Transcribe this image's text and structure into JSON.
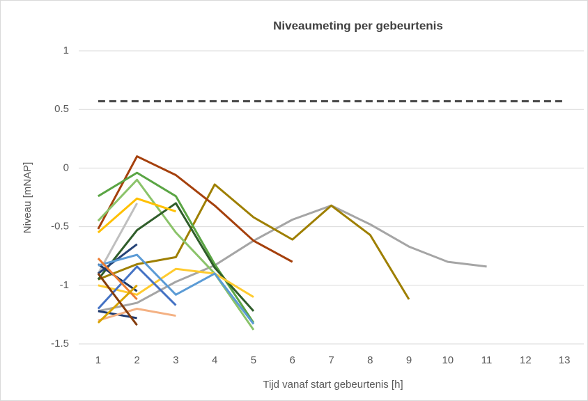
{
  "chart_data": {
    "type": "line",
    "title": "Niveaumeting per gebeurtenis",
    "x_label": "Tijd vanaf start gebeurtenis [h]",
    "y_label": "Niveau [mNAP]",
    "x": [
      1,
      2,
      3,
      4,
      5,
      6,
      7,
      8,
      9,
      10,
      11,
      12,
      13
    ],
    "xlim": [
      0.5,
      13.5
    ],
    "ylim": [
      -1.5,
      1
    ],
    "yticks": [
      1,
      0.5,
      0,
      -0.5,
      -1,
      -1.5
    ],
    "grid": true,
    "series": [
      {
        "color": "#404040",
        "style": "dashed",
        "values": [
          0.57,
          0.57,
          0.57,
          0.57,
          0.57,
          0.57,
          0.57,
          0.57,
          0.57,
          0.57,
          0.57,
          0.57,
          0.57
        ]
      },
      {
        "color": "#a5a5a5",
        "values": [
          -1.22,
          -1.15,
          -0.97,
          -0.83,
          -0.62,
          -0.44,
          -0.32,
          -0.48,
          -0.67,
          -0.8,
          -0.84,
          null,
          null
        ]
      },
      {
        "color": "#9e7f00",
        "values": [
          -0.95,
          -0.82,
          -0.76,
          -0.14,
          -0.42,
          -0.61,
          -0.32,
          -0.57,
          -1.12,
          null,
          null,
          null,
          null
        ]
      },
      {
        "color": "#a5400c",
        "values": [
          -0.52,
          0.1,
          -0.06,
          -0.32,
          -0.62,
          -0.8,
          null,
          null,
          null,
          null,
          null,
          null,
          null
        ]
      },
      {
        "color": "#8bc36a",
        "values": [
          -0.45,
          -0.1,
          -0.55,
          -0.9,
          -1.38,
          null,
          null,
          null,
          null,
          null,
          null,
          null,
          null
        ]
      },
      {
        "color": "#5aa544",
        "values": [
          -0.24,
          -0.04,
          -0.24,
          -0.82,
          -1.32,
          null,
          null,
          null,
          null,
          null,
          null,
          null,
          null
        ]
      },
      {
        "color": "#2f5d2a",
        "values": [
          -0.95,
          -0.53,
          -0.3,
          -0.85,
          -1.22,
          null,
          null,
          null,
          null,
          null,
          null,
          null,
          null
        ]
      },
      {
        "color": "#ffc000",
        "values": [
          -0.55,
          -0.26,
          -0.37,
          null,
          null,
          null,
          null,
          null,
          null,
          null,
          null,
          null,
          null
        ]
      },
      {
        "color": "#ffcb2f",
        "values": [
          -1.0,
          -1.08,
          -0.86,
          -0.9,
          -1.1,
          null,
          null,
          null,
          null,
          null,
          null,
          null,
          null
        ]
      },
      {
        "color": "#bfbfbf",
        "values": [
          -0.9,
          -0.3,
          null,
          null,
          null,
          null,
          null,
          null,
          null,
          null,
          null,
          null,
          null
        ]
      },
      {
        "color": "#264478",
        "values": [
          -0.9,
          -0.65,
          null,
          null,
          null,
          null,
          null,
          null,
          null,
          null,
          null,
          null,
          null
        ]
      },
      {
        "color": "#203864",
        "values": [
          -0.82,
          -1.05,
          null,
          null,
          null,
          null,
          null,
          null,
          null,
          null,
          null,
          null,
          null
        ]
      },
      {
        "color": "#1f3a70",
        "values": [
          -1.22,
          -1.28,
          null,
          null,
          null,
          null,
          null,
          null,
          null,
          null,
          null,
          null,
          null
        ]
      },
      {
        "color": "#5b9bd5",
        "values": [
          -0.83,
          -0.74,
          -1.08,
          -0.9,
          -1.33,
          null,
          null,
          null,
          null,
          null,
          null,
          null,
          null
        ]
      },
      {
        "color": "#4472c4",
        "values": [
          -1.2,
          -0.84,
          -1.17,
          null,
          null,
          null,
          null,
          null,
          null,
          null,
          null,
          null,
          null
        ]
      },
      {
        "color": "#f4b183",
        "values": [
          -1.3,
          -1.2,
          -1.26,
          null,
          null,
          null,
          null,
          null,
          null,
          null,
          null,
          null,
          null
        ]
      },
      {
        "color": "#ed7d31",
        "values": [
          -0.77,
          -1.12,
          null,
          null,
          null,
          null,
          null,
          null,
          null,
          null,
          null,
          null,
          null
        ]
      },
      {
        "color": "#d9a400",
        "values": [
          -1.32,
          -1.0,
          null,
          null,
          null,
          null,
          null,
          null,
          null,
          null,
          null,
          null,
          null
        ]
      },
      {
        "color": "#843c0c",
        "values": [
          -0.9,
          -1.34,
          null,
          null,
          null,
          null,
          null,
          null,
          null,
          null,
          null,
          null,
          null
        ]
      }
    ]
  }
}
